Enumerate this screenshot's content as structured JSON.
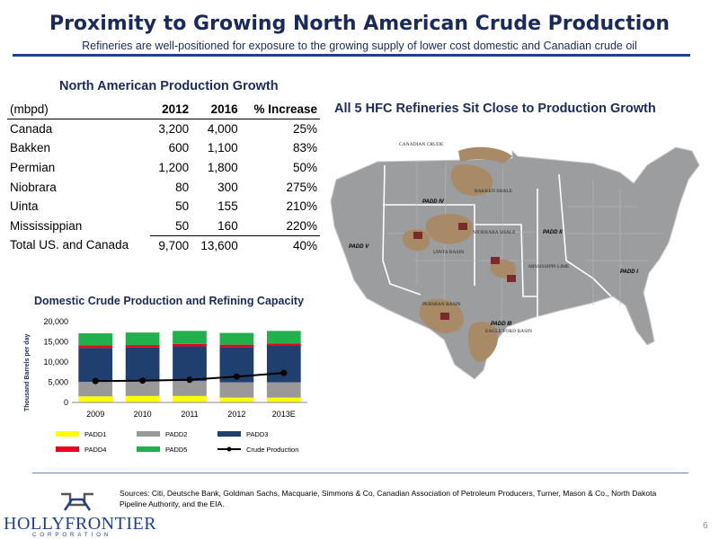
{
  "header": {
    "title": "Proximity to Growing North American Crude Production",
    "subtitle": "Refineries are well-positioned for exposure to the growing supply of lower cost domestic and Canadian crude oil"
  },
  "production_table": {
    "title": "North American Production Growth",
    "headers": [
      "(mbpd)",
      "2012",
      "2016",
      "% Increase"
    ],
    "rows": [
      [
        "Canada",
        "3,200",
        "4,000",
        "25%"
      ],
      [
        "Bakken",
        "600",
        "1,100",
        "83%"
      ],
      [
        "Permian",
        "1,200",
        "1,800",
        "50%"
      ],
      [
        "Niobrara",
        "80",
        "300",
        "275%"
      ],
      [
        "Uinta",
        "50",
        "155",
        "210%"
      ],
      [
        "Mississippian",
        "50",
        "160",
        "220%"
      ]
    ],
    "total": [
      "Total US. and Canada",
      "9,700",
      "13,600",
      "40%"
    ]
  },
  "map": {
    "title": "All 5 HFC Refineries Sit Close to Production Growth",
    "labels": {
      "canadian_crude": "CANADIAN CRUDE",
      "bakken": "BAKKEN SHALE",
      "niobrara": "NIOBRARA SHALE",
      "uinta": "UINTA BASIN",
      "mississippi": "MISSISSIPPI LIME",
      "permian": "PERMIAN BASIN",
      "eagle_ford": "EAGLE FORD BASIN",
      "padd1": "PADD I",
      "padd2": "PADD II",
      "padd3": "PADD III",
      "padd4": "PADD IV",
      "padd5": "PADD V"
    },
    "colors": {
      "land": "#9b9d9e",
      "shale": "#a88b66",
      "border": "#ffffff",
      "water": "#ffffff"
    }
  },
  "chart_data": {
    "type": "bar",
    "title": "Domestic Crude Production and Refining Capacity",
    "ylabel": "Thousand Barrels per day",
    "ylim": [
      0,
      20000
    ],
    "yticks": [
      "0",
      "5,000",
      "10,000",
      "15,000",
      "20,000"
    ],
    "categories": [
      "2009",
      "2010",
      "2011",
      "2012",
      "2013E"
    ],
    "series": [
      {
        "name": "PADD1",
        "color": "#ffff00",
        "values": [
          1500,
          1600,
          1600,
          1200,
          1200
        ]
      },
      {
        "name": "PADD2",
        "color": "#999999",
        "values": [
          3600,
          3600,
          3700,
          3800,
          3800
        ]
      },
      {
        "name": "PADD3",
        "color": "#1f3f6f",
        "values": [
          8400,
          8400,
          8600,
          8700,
          9000
        ]
      },
      {
        "name": "PADD4",
        "color": "#e8001c",
        "values": [
          600,
          600,
          600,
          600,
          600
        ]
      },
      {
        "name": "PADD5",
        "color": "#22b04c",
        "values": [
          3000,
          3100,
          3200,
          2900,
          3100
        ]
      }
    ],
    "line": {
      "name": "Crude Production",
      "color": "#000000",
      "values": [
        5300,
        5400,
        5600,
        6400,
        7300
      ]
    }
  },
  "footer": {
    "sources": "Sources: Citi, Deutsche Bank, Goldman Sachs, Macquarie, Simmons & Co, Canadian Association of Petroleum Producers, Turner, Mason & Co., North Dakota Pipeline Authority, and the EIA.",
    "logo_text": "HOLLYFRONTIER",
    "logo_sub": "CORPORATION",
    "page_number": "6"
  }
}
